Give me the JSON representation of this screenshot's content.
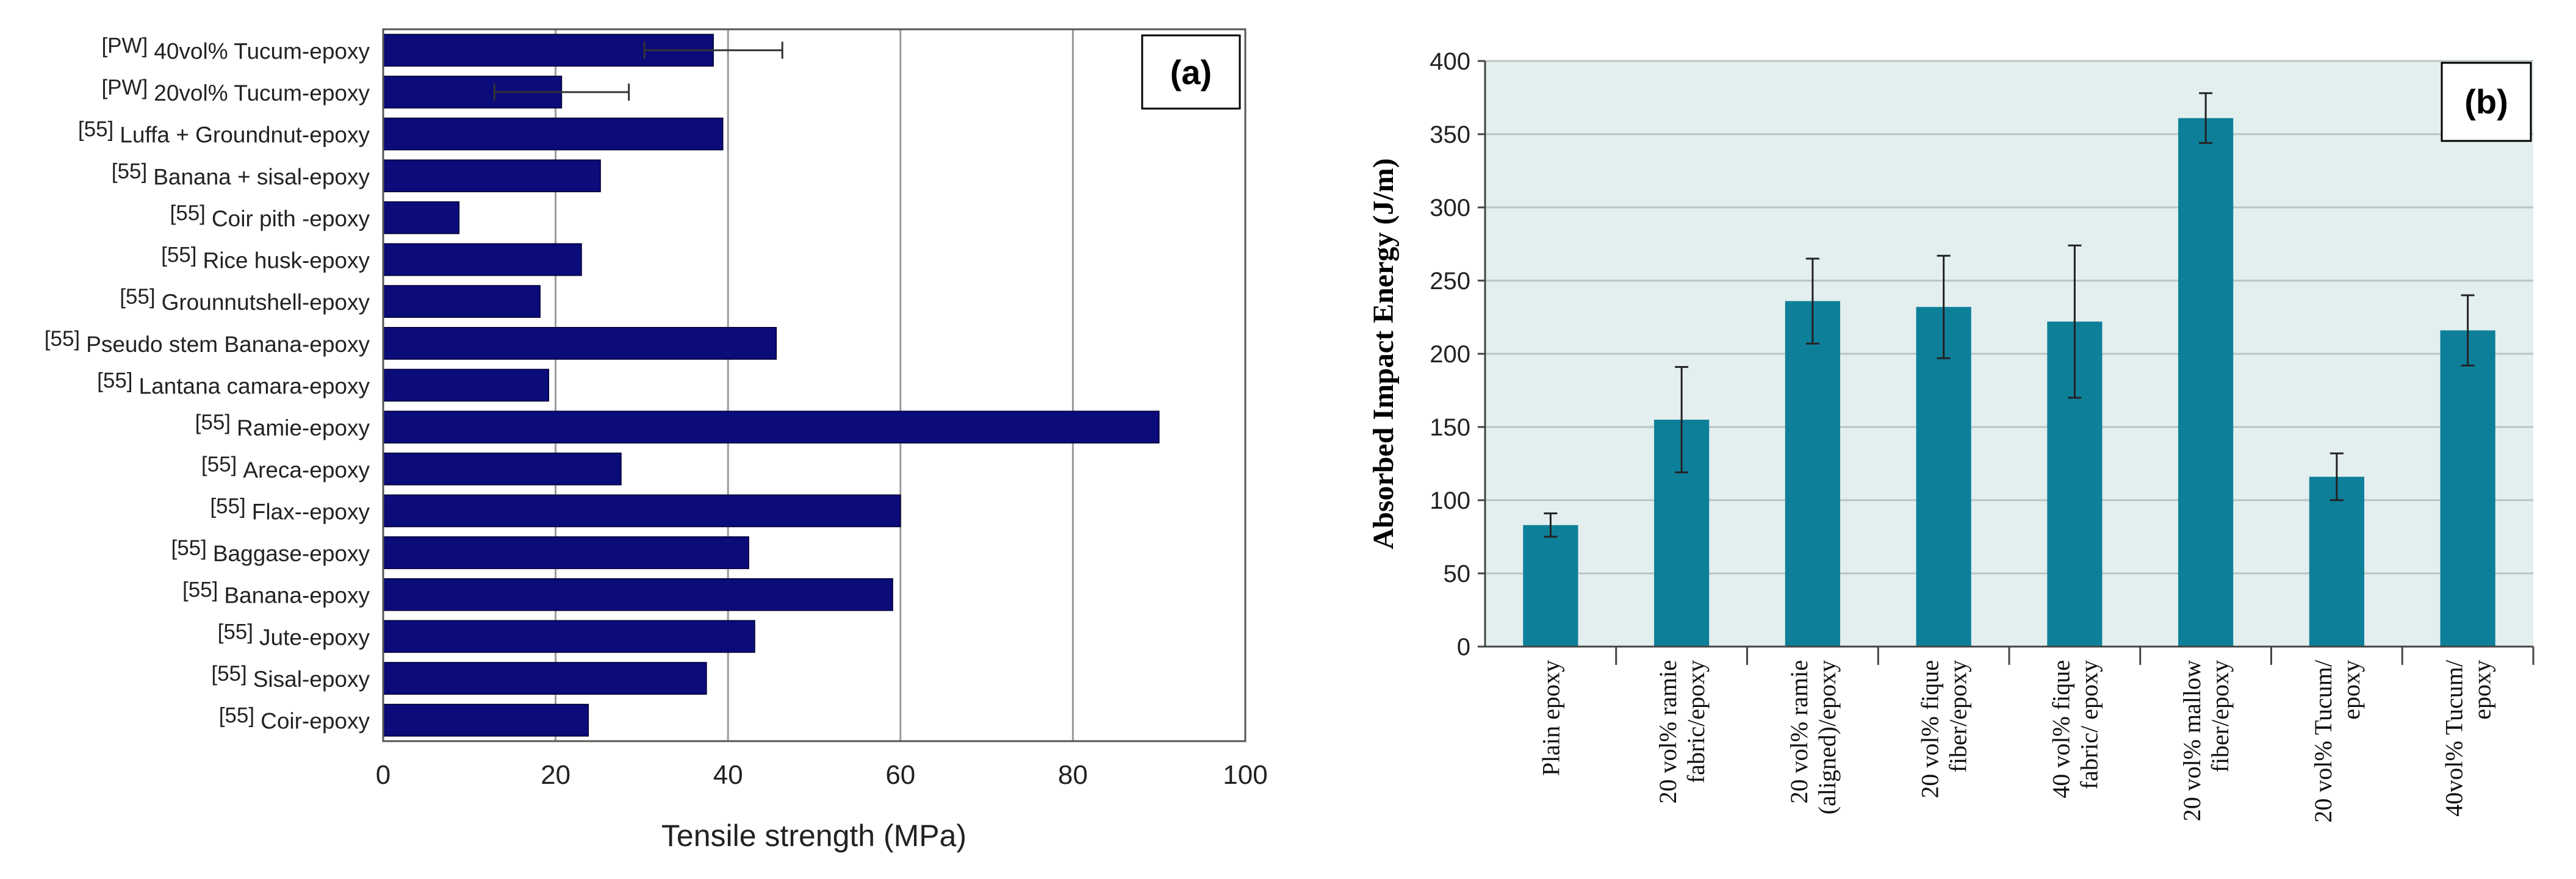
{
  "chart_data": [
    {
      "type": "bar",
      "orientation": "horizontal",
      "panel_label": "(a)",
      "xlabel": "Tensile strength (MPa)",
      "ylabel": "",
      "xlim": [
        0,
        100
      ],
      "xticks": [
        "0",
        "20",
        "40",
        "60",
        "80",
        "100"
      ],
      "grid": "vertical",
      "bar_color": "#0b0b7a",
      "categories": [
        {
          "ref": "[PW]",
          "name": "40vol% Tucum-epoxy"
        },
        {
          "ref": "[PW]",
          "name": "20vol% Tucum-epoxy"
        },
        {
          "ref": "[55]",
          "name": "Luffa + Groundnut-epoxy"
        },
        {
          "ref": "[55]",
          "name": "Banana + sisal-epoxy"
        },
        {
          "ref": "[55]",
          "name": "Coir pith -epoxy"
        },
        {
          "ref": "[55]",
          "name": "Rice husk-epoxy"
        },
        {
          "ref": "[55]",
          "name": "Grounnutshell-epoxy"
        },
        {
          "ref": "[55]",
          "name": "Pseudo stem Banana-epoxy"
        },
        {
          "ref": "[55]",
          "name": "Lantana camara-epoxy"
        },
        {
          "ref": "[55]",
          "name": "Ramie-epoxy"
        },
        {
          "ref": "[55]",
          "name": "Areca-epoxy"
        },
        {
          "ref": "[55]",
          "name": "Flax--epoxy"
        },
        {
          "ref": "[55]",
          "name": "Baggase-epoxy"
        },
        {
          "ref": "[55]",
          "name": "Banana-epoxy"
        },
        {
          "ref": "[55]",
          "name": "Jute-epoxy"
        },
        {
          "ref": "[55]",
          "name": "Sisal-epoxy"
        },
        {
          "ref": "[55]",
          "name": "Coir-epoxy"
        }
      ],
      "values": [
        38.3,
        20.7,
        39.4,
        25.2,
        8.8,
        23.0,
        18.2,
        45.6,
        19.2,
        90.0,
        27.6,
        60.0,
        42.4,
        59.1,
        43.1,
        37.5,
        23.8
      ],
      "error": [
        8.0,
        7.8,
        null,
        null,
        null,
        null,
        null,
        null,
        null,
        null,
        null,
        null,
        null,
        null,
        null,
        null,
        null
      ]
    },
    {
      "type": "bar",
      "panel_label": "(b)",
      "ylabel": "Absorbed Impact Energy (J/m)",
      "xlabel": "",
      "ylim": [
        0,
        400
      ],
      "yticks": [
        "0",
        "50",
        "100",
        "150",
        "200",
        "250",
        "300",
        "350",
        "400"
      ],
      "grid": "horizontal",
      "bar_color": "#0e7f99",
      "plot_background": "#e3efef",
      "categories": [
        [
          "Plain  epoxy"
        ],
        [
          "20 vol% ramie",
          "fabric/epoxy"
        ],
        [
          "20 vol% ramie",
          "(aligned)/epoxy"
        ],
        [
          "20 vol% fique",
          "fiber/epoxy"
        ],
        [
          "40 vol% fique",
          "fabric/ epoxy"
        ],
        [
          "20 vol% mallow",
          "fiber/epoxy"
        ],
        [
          "20 vol% Tucum/",
          "epoxy"
        ],
        [
          "40vol% Tucum/",
          "epoxy"
        ]
      ],
      "values": [
        83,
        155,
        236,
        232,
        222,
        361,
        116,
        216
      ],
      "error": [
        8,
        36,
        29,
        35,
        52,
        17,
        16,
        24
      ]
    }
  ]
}
